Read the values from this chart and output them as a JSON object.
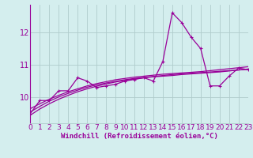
{
  "x": [
    0,
    1,
    2,
    3,
    4,
    5,
    6,
    7,
    8,
    9,
    10,
    11,
    12,
    13,
    14,
    15,
    16,
    17,
    18,
    19,
    20,
    21,
    22,
    23
  ],
  "y_main": [
    9.5,
    9.9,
    9.9,
    10.2,
    10.2,
    10.6,
    10.5,
    10.3,
    10.35,
    10.4,
    10.5,
    10.55,
    10.6,
    10.5,
    11.1,
    12.6,
    12.3,
    11.85,
    11.5,
    10.35,
    10.35,
    10.65,
    10.9,
    10.85
  ],
  "y_reg1": [
    9.55,
    9.72,
    9.88,
    10.01,
    10.12,
    10.22,
    10.31,
    10.38,
    10.44,
    10.49,
    10.54,
    10.58,
    10.61,
    10.64,
    10.67,
    10.7,
    10.72,
    10.74,
    10.76,
    10.78,
    10.8,
    10.82,
    10.84,
    10.86
  ],
  "y_reg2": [
    9.65,
    9.8,
    9.94,
    10.06,
    10.17,
    10.26,
    10.35,
    10.42,
    10.48,
    10.54,
    10.58,
    10.62,
    10.65,
    10.68,
    10.71,
    10.73,
    10.75,
    10.77,
    10.79,
    10.82,
    10.85,
    10.88,
    10.91,
    10.94
  ],
  "y_reg3": [
    9.45,
    9.64,
    9.8,
    9.94,
    10.06,
    10.17,
    10.26,
    10.34,
    10.41,
    10.47,
    10.52,
    10.56,
    10.6,
    10.63,
    10.65,
    10.67,
    10.7,
    10.72,
    10.74,
    10.76,
    10.78,
    10.81,
    10.84,
    10.87
  ],
  "line_color": "#990099",
  "bg_color": "#d4eeee",
  "grid_color": "#b0cccc",
  "xlabel": "Windchill (Refroidissement éolien,°C)",
  "yticks": [
    10,
    11,
    12
  ],
  "xticks": [
    0,
    1,
    2,
    3,
    4,
    5,
    6,
    7,
    8,
    9,
    10,
    11,
    12,
    13,
    14,
    15,
    16,
    17,
    18,
    19,
    20,
    21,
    22,
    23
  ],
  "xlim": [
    0,
    23
  ],
  "ylim": [
    9.2,
    12.85
  ],
  "xlabel_fontsize": 6.5,
  "tick_fontsize": 6.5
}
